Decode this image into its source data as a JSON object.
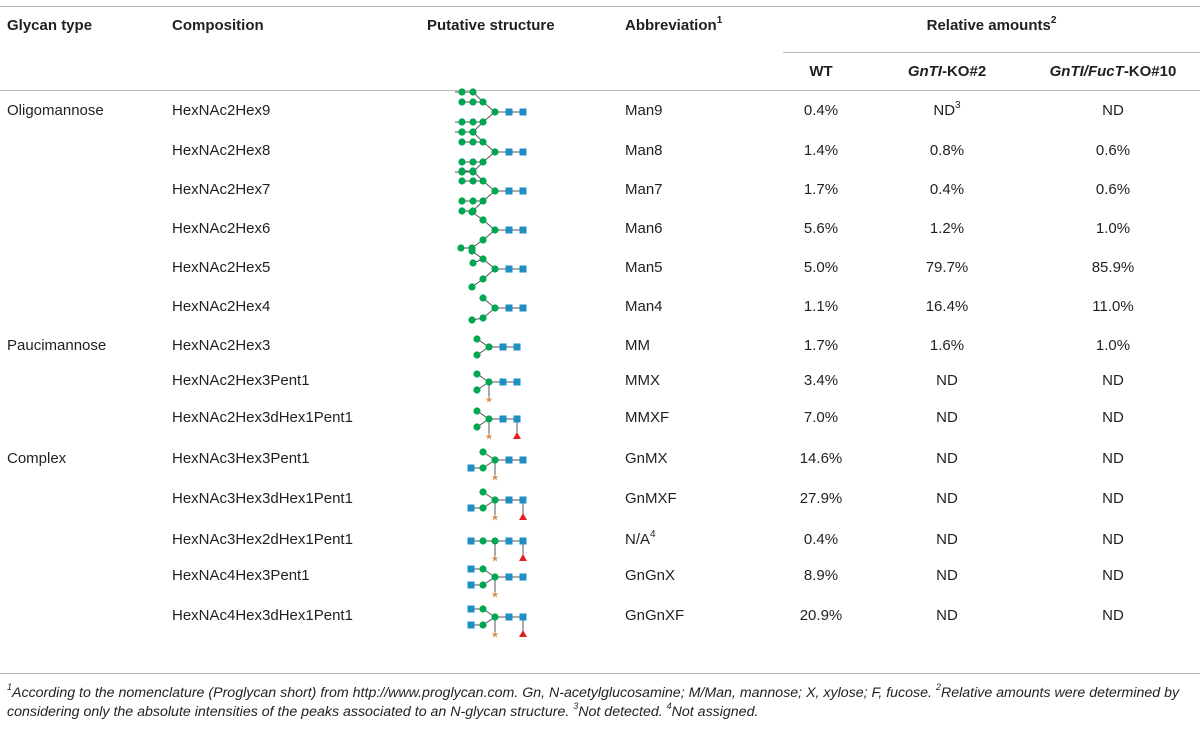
{
  "headers": {
    "glycan_type": "Glycan type",
    "composition": "Composition",
    "putative_structure": "Putative structure",
    "abbreviation": "Abbreviation",
    "abbreviation_sup": "1",
    "relative_amounts": "Relative amounts",
    "relative_amounts_sup": "2",
    "wt": "WT",
    "gnti_italic": "GnTI",
    "gnti_suffix": "-KO#2",
    "gnti_fuct_italic": "GnTI/FucT",
    "gnti_fuct_suffix": "-KO#10"
  },
  "rows": [
    {
      "type": "Oligomannose",
      "composition": "HexNAc2Hex9",
      "abbr": "Man9",
      "wt": "0.4%",
      "gn": "ND",
      "gn_sup": "3",
      "fu": "ND",
      "glycan": "man9"
    },
    {
      "type": "",
      "composition": "HexNAc2Hex8",
      "abbr": "Man8",
      "wt": "1.4%",
      "gn": "0.8%",
      "gn_sup": "",
      "fu": "0.6%",
      "glycan": "man8"
    },
    {
      "type": "",
      "composition": "HexNAc2Hex7",
      "abbr": "Man7",
      "wt": "1.7%",
      "gn": "0.4%",
      "gn_sup": "",
      "fu": "0.6%",
      "glycan": "man7"
    },
    {
      "type": "",
      "composition": "HexNAc2Hex6",
      "abbr": "Man6",
      "wt": "5.6%",
      "gn": "1.2%",
      "gn_sup": "",
      "fu": "1.0%",
      "glycan": "man6"
    },
    {
      "type": "",
      "composition": "HexNAc2Hex5",
      "abbr": "Man5",
      "wt": "5.0%",
      "gn": "79.7%",
      "gn_sup": "",
      "fu": "85.9%",
      "glycan": "man5"
    },
    {
      "type": "",
      "composition": "HexNAc2Hex4",
      "abbr": "Man4",
      "wt": "1.1%",
      "gn": "16.4%",
      "gn_sup": "",
      "fu": "11.0%",
      "glycan": "man4"
    },
    {
      "type": "Paucimannose",
      "composition": "HexNAc2Hex3",
      "abbr": "MM",
      "wt": "1.7%",
      "gn": "1.6%",
      "gn_sup": "",
      "fu": "1.0%",
      "glycan": "mm"
    },
    {
      "type": "",
      "composition": "HexNAc2Hex3Pent1",
      "abbr": "MMX",
      "wt": "3.4%",
      "gn": "ND",
      "gn_sup": "",
      "fu": "ND",
      "glycan": "mmx"
    },
    {
      "type": "",
      "composition": "HexNAc2Hex3dHex1Pent1",
      "abbr": "MMXF",
      "wt": "7.0%",
      "gn": "ND",
      "gn_sup": "",
      "fu": "ND",
      "glycan": "mmxf"
    },
    {
      "type": "Complex",
      "composition": "HexNAc3Hex3Pent1",
      "abbr": "GnMX",
      "abbr_sup": "",
      "wt": "14.6%",
      "gn": "ND",
      "gn_sup": "",
      "fu": "ND",
      "glycan": "gnmx"
    },
    {
      "type": "",
      "composition": "HexNAc3Hex3dHex1Pent1",
      "abbr": "GnMXF",
      "wt": "27.9%",
      "gn": "ND",
      "gn_sup": "",
      "fu": "ND",
      "glycan": "gnmxf"
    },
    {
      "type": "",
      "composition": "HexNAc3Hex2dHex1Pent1",
      "abbr": "N/A",
      "abbr_sup": "4",
      "wt": "0.4%",
      "gn": "ND",
      "gn_sup": "",
      "fu": "ND",
      "glycan": "na"
    },
    {
      "type": "",
      "composition": "HexNAc4Hex3Pent1",
      "abbr": "GnGnX",
      "wt": "8.9%",
      "gn": "ND",
      "gn_sup": "",
      "fu": "ND",
      "glycan": "gngnx"
    },
    {
      "type": "",
      "composition": "HexNAc4Hex3dHex1Pent1",
      "abbr": "GnGnXF",
      "wt": "20.9%",
      "gn": "ND",
      "gn_sup": "",
      "fu": "ND",
      "glycan": "gngnxf"
    }
  ],
  "footnote": {
    "n1": "1",
    "t1": "According to the nomenclature (Proglycan short) from http://www.proglycan.com. Gn, N-acetylglucosamine; M/Man, mannose; X, xylose; F, fucose.",
    "n2": "2",
    "t2": "Relative amounts were determined by considering only the absolute intensities of the peaks associated to an N-glycan structure.",
    "n3": "3",
    "t3": "Not detected.",
    "n4": "4",
    "t4": "Not assigned."
  },
  "colors": {
    "mannose": "#00a651",
    "glcnac": "#1f8fc1",
    "xylose": "#d98c4a",
    "fucose": "#e31e24",
    "rule": "#b9b9b9",
    "text": "#231f20"
  }
}
